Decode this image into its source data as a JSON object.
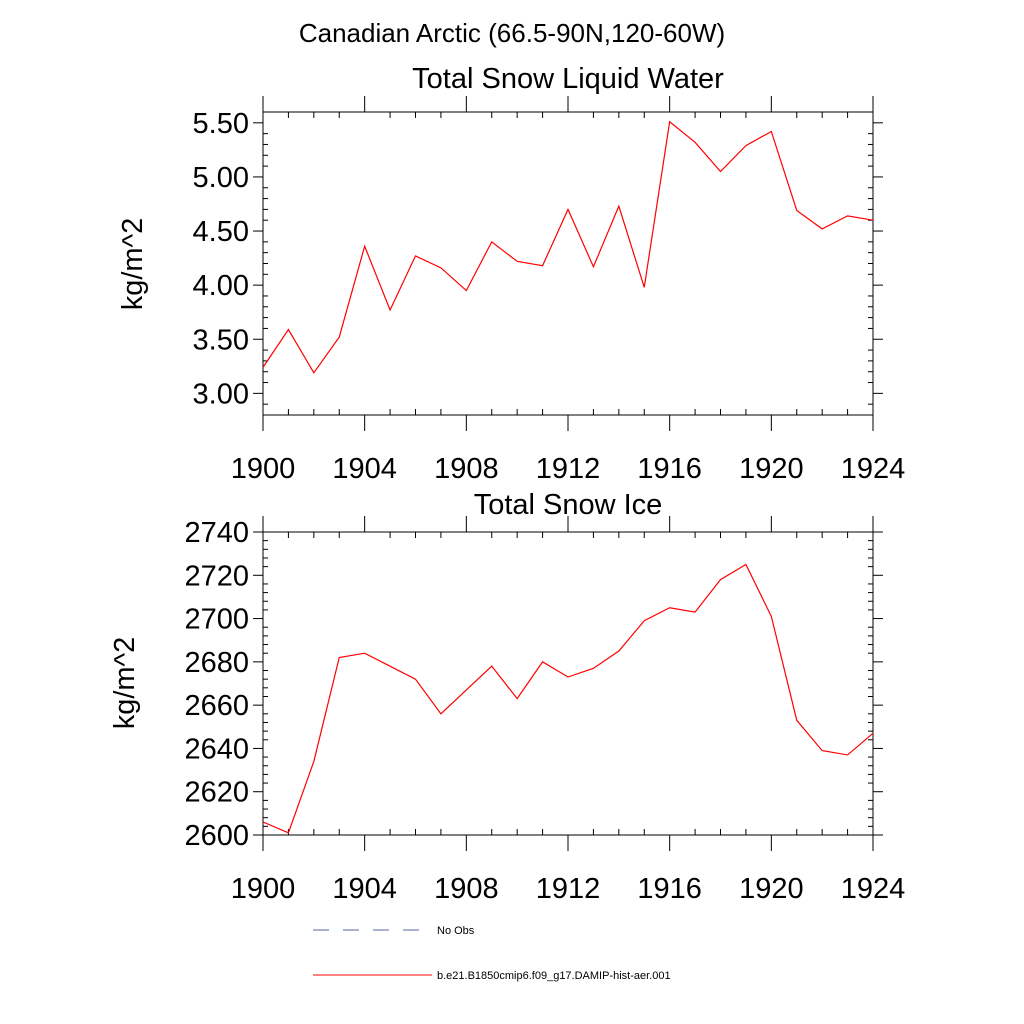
{
  "figure": {
    "suptitle": "Canadian Arctic (66.5-90N,120-60W)"
  },
  "colors": {
    "series": "#ff0000",
    "no_obs": "#5566aa",
    "axis": "#000000"
  },
  "legend": [
    {
      "label": "No Obs",
      "style": "dashed",
      "color": "#5566aa"
    },
    {
      "label": "b.e21.B1850cmip6.f09_g17.DAMIP-hist-aer.001",
      "style": "solid",
      "color": "#ff0000"
    }
  ],
  "chart_data": [
    {
      "type": "line",
      "title": "Total Snow Liquid Water",
      "xlabel": "",
      "ylabel": "kg/m^2",
      "xlim": [
        1900,
        1924
      ],
      "ylim": [
        2.8,
        5.6
      ],
      "xticks": [
        1900,
        1904,
        1908,
        1912,
        1916,
        1920,
        1924
      ],
      "xtick_labels": [
        "1900",
        "1904",
        "1908",
        "1912",
        "1916",
        "1920",
        "1924"
      ],
      "yticks": [
        3.0,
        3.5,
        4.0,
        4.5,
        5.0,
        5.5
      ],
      "ytick_labels": [
        "3.00",
        "3.50",
        "4.00",
        "4.50",
        "5.00",
        "5.50"
      ],
      "grid": false,
      "series": [
        {
          "name": "b.e21.B1850cmip6.f09_g17.DAMIP-hist-aer.001",
          "color": "#ff0000",
          "x": [
            1900,
            1901,
            1902,
            1903,
            1904,
            1905,
            1906,
            1907,
            1908,
            1909,
            1910,
            1911,
            1912,
            1913,
            1914,
            1915,
            1916,
            1917,
            1918,
            1919,
            1920,
            1921,
            1922,
            1923,
            1924
          ],
          "y": [
            3.24,
            3.59,
            3.19,
            3.52,
            4.36,
            3.77,
            4.27,
            4.16,
            3.95,
            4.4,
            4.22,
            4.18,
            4.7,
            4.17,
            4.73,
            3.98,
            5.51,
            5.32,
            5.05,
            5.29,
            5.42,
            4.69,
            4.52,
            4.64,
            4.6
          ]
        }
      ]
    },
    {
      "type": "line",
      "title": "Total Snow Ice",
      "xlabel": "",
      "ylabel": "kg/m^2",
      "xlim": [
        1900,
        1924
      ],
      "ylim": [
        2600,
        2740
      ],
      "xticks": [
        1900,
        1904,
        1908,
        1912,
        1916,
        1920,
        1924
      ],
      "xtick_labels": [
        "1900",
        "1904",
        "1908",
        "1912",
        "1916",
        "1920",
        "1924"
      ],
      "yticks": [
        2600,
        2620,
        2640,
        2660,
        2680,
        2700,
        2720,
        2740
      ],
      "ytick_labels": [
        "2600",
        "2620",
        "2640",
        "2660",
        "2680",
        "2700",
        "2720",
        "2740"
      ],
      "grid": false,
      "series": [
        {
          "name": "b.e21.B1850cmip6.f09_g17.DAMIP-hist-aer.001",
          "color": "#ff0000",
          "x": [
            1900,
            1901,
            1902,
            1903,
            1904,
            1905,
            1906,
            1907,
            1908,
            1909,
            1910,
            1911,
            1912,
            1913,
            1914,
            1915,
            1916,
            1917,
            1918,
            1919,
            1920,
            1921,
            1922,
            1923,
            1924
          ],
          "y": [
            2606,
            2601,
            2634,
            2682,
            2684,
            2678,
            2672,
            2656,
            2667,
            2678,
            2663,
            2680,
            2673,
            2677,
            2685,
            2699,
            2705,
            2703,
            2718,
            2725,
            2701,
            2653,
            2639,
            2637,
            2647
          ]
        }
      ]
    }
  ]
}
